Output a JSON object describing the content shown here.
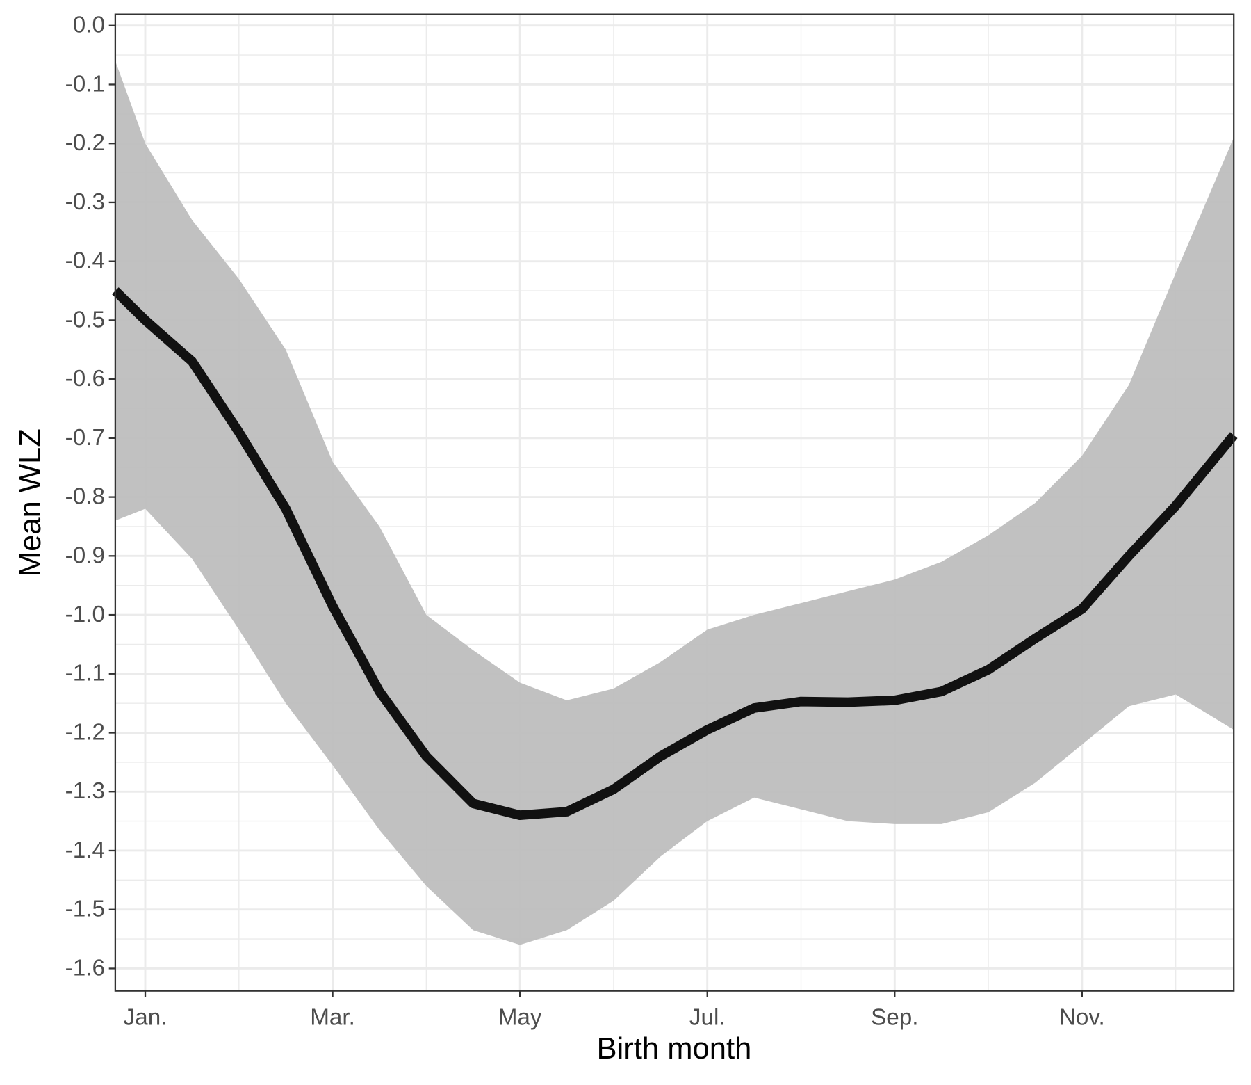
{
  "chart_data": {
    "type": "line",
    "x_label": "Birth month",
    "y_label": "Mean WLZ",
    "x": [
      0.68,
      1,
      1.5,
      2,
      2.5,
      3,
      3.5,
      4,
      4.5,
      5,
      5.5,
      6,
      6.5,
      7,
      7.5,
      8,
      8.5,
      9,
      9.5,
      10,
      10.5,
      11,
      11.5,
      12,
      12.62
    ],
    "values": [
      -0.45,
      -0.5,
      -0.57,
      -0.69,
      -0.82,
      -0.985,
      -1.13,
      -1.24,
      -1.32,
      -1.34,
      -1.334,
      -1.296,
      -1.24,
      -1.195,
      -1.158,
      -1.147,
      -1.148,
      -1.145,
      -1.13,
      -1.093,
      -1.04,
      -0.99,
      -0.9,
      -0.815,
      -0.695
    ],
    "color": "#111111",
    "band": {
      "color": "#bebebe",
      "upper": [
        -0.06,
        -0.2,
        -0.33,
        -0.43,
        -0.55,
        -0.74,
        -0.85,
        -1.0,
        -1.06,
        -1.115,
        -1.145,
        -1.125,
        -1.08,
        -1.025,
        -1.0,
        -0.98,
        -0.96,
        -0.94,
        -0.91,
        -0.865,
        -0.81,
        -0.73,
        -0.61,
        -0.42,
        -0.19
      ],
      "lower": [
        -0.84,
        -0.82,
        -0.905,
        -1.025,
        -1.15,
        -1.255,
        -1.365,
        -1.46,
        -1.535,
        -1.56,
        -1.535,
        -1.485,
        -1.41,
        -1.35,
        -1.31,
        -1.33,
        -1.35,
        -1.355,
        -1.355,
        -1.335,
        -1.285,
        -1.22,
        -1.155,
        -1.135,
        -1.195
      ]
    },
    "xlim": [
      0.68,
      12.62
    ],
    "xticks": [
      {
        "value": 1,
        "label": "Jan."
      },
      {
        "value": 3,
        "label": "Mar."
      },
      {
        "value": 5,
        "label": "May"
      },
      {
        "value": 7,
        "label": "Jul."
      },
      {
        "value": 9,
        "label": "Sep."
      },
      {
        "value": 11,
        "label": "Nov."
      }
    ],
    "x_minor_ticks": [
      2,
      4,
      6,
      8,
      10,
      12
    ],
    "ylim": [
      -1.638,
      0.019
    ],
    "yticks": [
      {
        "value": 0,
        "label": "0.0"
      },
      -0.1,
      -0.2,
      -0.3,
      -0.4,
      -0.5,
      -0.6,
      -0.7,
      -0.8,
      -0.9,
      {
        "value": -1,
        "label": "-1.0"
      },
      -1.1,
      -1.2,
      -1.3,
      -1.4,
      -1.5,
      -1.6
    ],
    "y_minor_ticks": [
      -0.05,
      -0.15,
      -0.25,
      -0.35,
      -0.45,
      -0.55,
      -0.65,
      -0.75,
      -0.85,
      -0.95,
      -1.05,
      -1.15,
      -1.25,
      -1.35,
      -1.45,
      -1.55
    ],
    "grid": true
  }
}
